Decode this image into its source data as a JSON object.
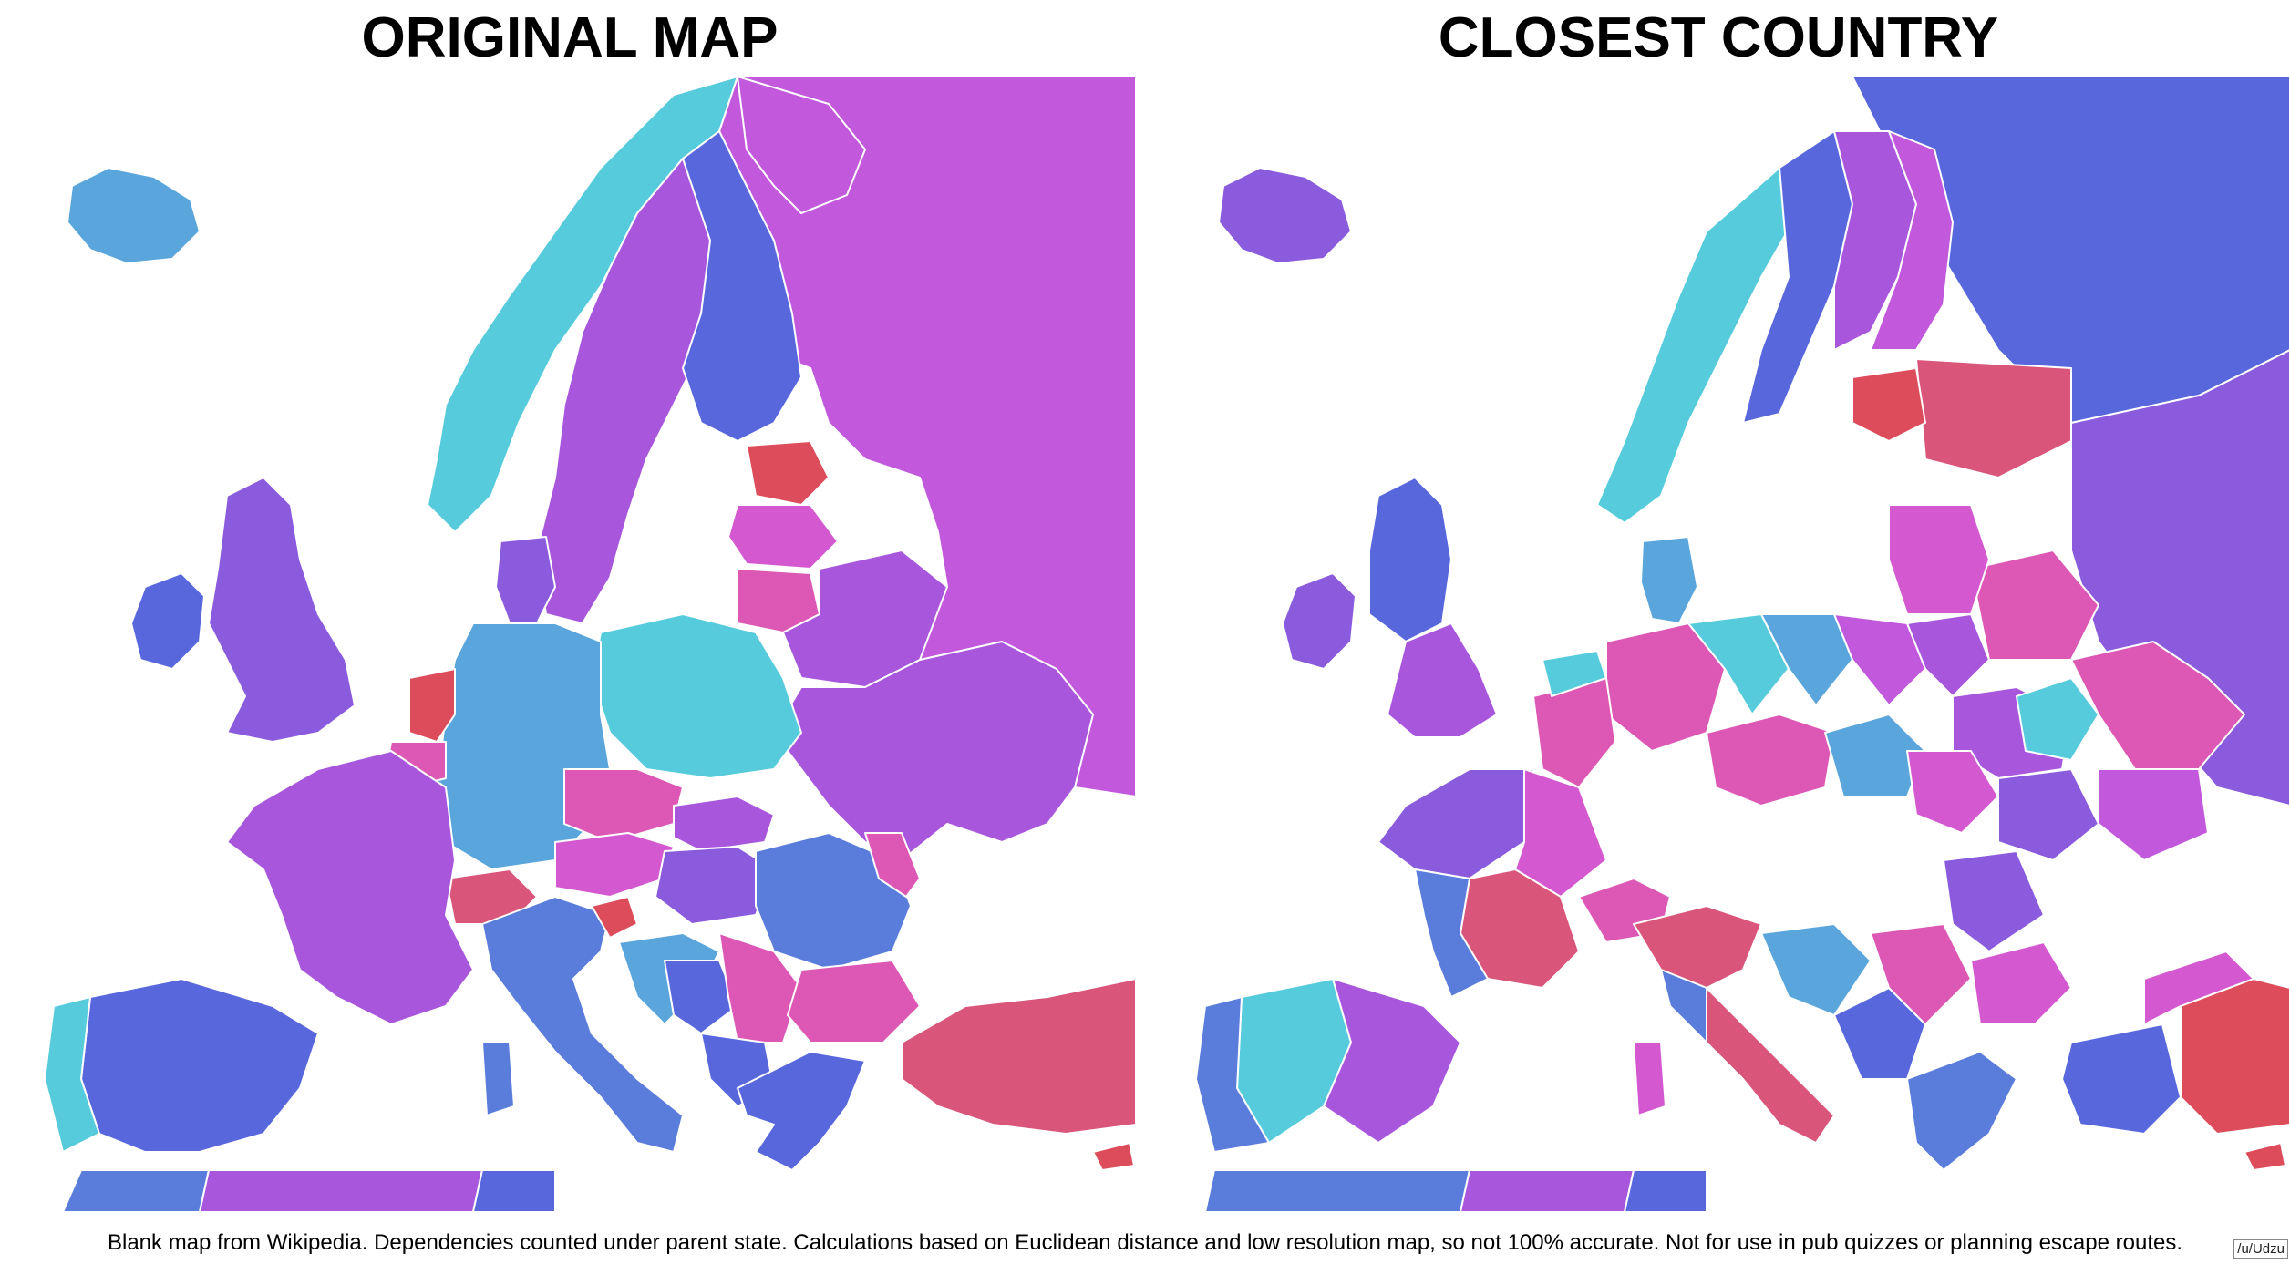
{
  "left_title": "ORIGINAL MAP",
  "right_title": "CLOSEST COUNTRY",
  "caption": "Blank map from Wikipedia. Dependencies counted under parent state. Calculations based on Euclidean distance and low resolution map, so not 100% accurate. Not for use in pub quizzes or planning escape routes.",
  "credit": "/u/Udzu",
  "palette": {
    "magenta": "#c258dc",
    "violet": "#a857dc",
    "purple": "#8a5bdc",
    "blue": "#5868dc",
    "mid_blue": "#5a7ddc",
    "sky": "#5aa6dc",
    "cyan": "#56cbdc",
    "rose": "#d9557a",
    "red": "#dc4c5a",
    "pink": "#dc58b4",
    "orchid": "#d459d0",
    "sea": "#ffffff"
  }
}
